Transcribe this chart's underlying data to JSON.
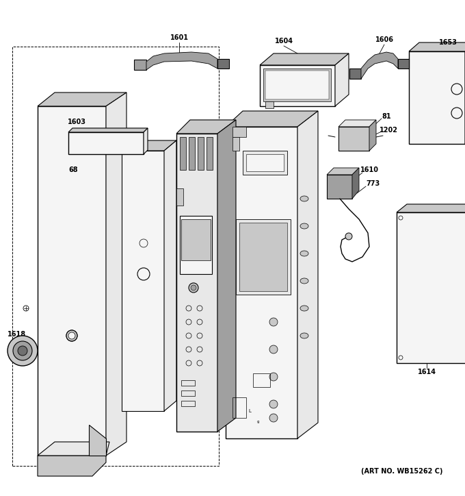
{
  "art_no": "(ART NO. WB15262 C)",
  "background_color": "#ffffff",
  "fig_width": 6.8,
  "fig_height": 7.24,
  "dpi": 100,
  "gray_light": "#e8e8e8",
  "gray_mid": "#c8c8c8",
  "gray_dark": "#a0a0a0",
  "gray_darkest": "#707070",
  "white": "#f5f5f5"
}
